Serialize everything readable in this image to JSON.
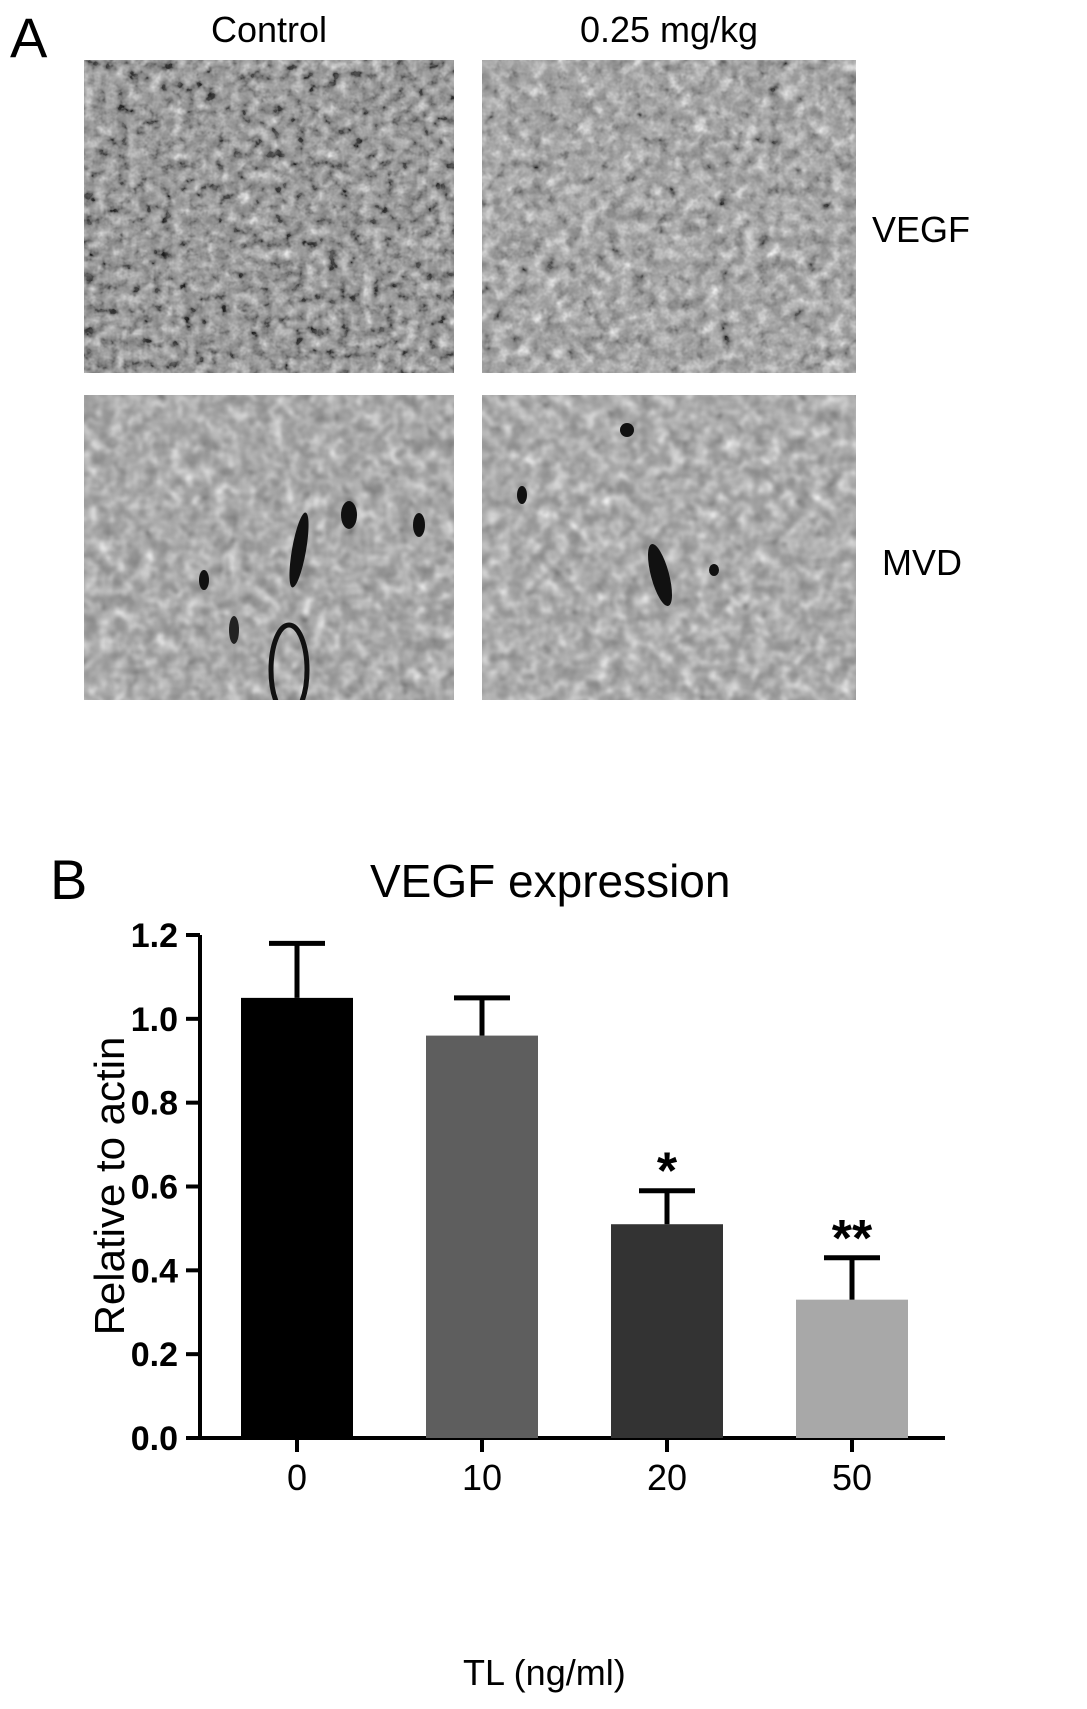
{
  "figure": {
    "panel_a": {
      "letter": "A",
      "columns": [
        "Control",
        "0.25 mg/kg"
      ],
      "rows": [
        "VEGF",
        "MVD"
      ]
    },
    "panel_b": {
      "letter": "B"
    }
  },
  "chart_data": {
    "type": "bar",
    "title": "VEGF expression",
    "xlabel": "TL (ng/ml)",
    "ylabel": "Relative to actin",
    "categories": [
      "0",
      "10",
      "20",
      "50"
    ],
    "values": [
      1.05,
      0.96,
      0.51,
      0.33
    ],
    "errors": [
      0.13,
      0.09,
      0.08,
      0.1
    ],
    "annotations": [
      "",
      "",
      "*",
      "**"
    ],
    "bar_colors": [
      "#000000",
      "#5e5e5e",
      "#333333",
      "#a8a8a8"
    ],
    "ylim": [
      0,
      1.2
    ],
    "yticks": [
      "0.0",
      "0.2",
      "0.4",
      "0.6",
      "0.8",
      "1.0",
      "1.2"
    ],
    "grid": false
  }
}
